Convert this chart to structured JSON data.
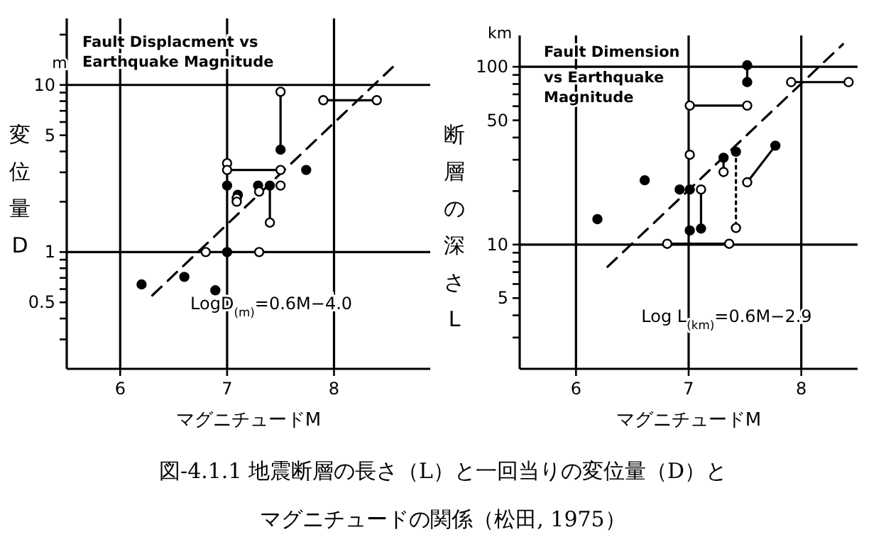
{
  "chart_data": [
    {
      "type": "scatter",
      "title": "Fault Displacment vs Earthquake Magnitude",
      "xlabel": "マグニチュードM",
      "ylabel": "変位量D",
      "annotations": [
        "m",
        "LogD$_{(m)}$=0.6M−4.0"
      ],
      "xlim": [
        5.5,
        8.9
      ],
      "ylim": [
        0.2,
        25
      ],
      "xticks": [
        6,
        7,
        8
      ],
      "yticks": [
        {
          "value": 0.3,
          "label": null
        },
        {
          "value": 0.4,
          "label": null
        },
        0.5,
        {
          "value": 0.6,
          "label": null
        },
        {
          "value": 0.7,
          "label": null
        },
        {
          "value": 0.8,
          "label": null
        },
        {
          "value": 0.9,
          "label": null
        },
        1,
        {
          "value": 2,
          "label": null
        },
        {
          "value": 3,
          "label": null
        },
        {
          "value": 4,
          "label": null
        },
        5,
        {
          "value": 6,
          "label": null
        },
        {
          "value": 7,
          "label": null
        },
        {
          "value": 8,
          "label": null
        },
        {
          "value": 9,
          "label": null
        },
        10,
        {
          "value": 20,
          "label": null
        }
      ],
      "log": "y",
      "marker": "circle",
      "grid": false,
      "ref_lines": [
        {
          "axis": "x",
          "value": 6
        },
        {
          "axis": "x",
          "value": 7
        },
        {
          "axis": "x",
          "value": 8
        },
        {
          "axis": "y",
          "value": 1
        },
        {
          "axis": "y",
          "value": 10
        }
      ],
      "series": [
        {
          "type": "line",
          "color": "#000000",
          "marker": "none",
          "line_style": "dashed",
          "x": [
            6.3,
            8.55
          ],
          "values": [
            0.55,
            12.8
          ]
        },
        {
          "type": "line",
          "color": "#000000",
          "marker": "none",
          "x": [
            7.5,
            7.5
          ],
          "values": [
            9.1,
            4.1
          ]
        },
        {
          "type": "line",
          "color": "#000000",
          "marker": "none",
          "x": [
            7.0,
            7.5
          ],
          "values": [
            3.1,
            3.1
          ]
        },
        {
          "type": "line",
          "color": "#000000",
          "marker": "none",
          "x": [
            7.4,
            7.4
          ],
          "values": [
            2.5,
            1.5
          ]
        },
        {
          "type": "line",
          "color": "#000000",
          "marker": "none",
          "x": [
            7.9,
            8.4
          ],
          "values": [
            8.1,
            8.1
          ]
        },
        {
          "color": "#000000",
          "x": [
            6.2,
            6.6,
            6.89,
            7.0,
            7.0,
            7.1,
            7.29,
            7.4,
            7.5,
            7.74
          ],
          "values": [
            0.64,
            0.71,
            0.59,
            1.0,
            2.5,
            2.2,
            2.5,
            2.5,
            4.1,
            3.1
          ]
        },
        {
          "color": "#ffffff",
          "x": [
            7.5,
            7.0,
            7.0,
            7.5,
            7.09,
            7.09,
            7.3,
            7.4,
            7.5,
            6.8,
            7.3,
            7.9,
            8.4
          ],
          "values": [
            9.1,
            3.4,
            3.1,
            3.1,
            2.1,
            2.0,
            2.3,
            1.5,
            2.5,
            1.0,
            1.0,
            8.1,
            8.1
          ]
        }
      ]
    },
    {
      "type": "scatter",
      "title": "Fault Dimension vs Earthquake Magnitude",
      "xlabel": "マグニチュードM",
      "ylabel": "断層の深さL",
      "annotations": [
        "km",
        "Log L$_{(km)}$=0.6M−2.9",
        "図-4.1.1 地震断層の長さ（L）と一回当りの変位量（D）と",
        "マグニチュードの関係（松田, 1975）"
      ],
      "xlim": [
        5.5,
        8.5
      ],
      "ylim": [
        2,
        150
      ],
      "xticks": [
        6,
        7,
        8
      ],
      "yticks": [
        {
          "value": 3,
          "label": null
        },
        {
          "value": 4,
          "label": null
        },
        5,
        {
          "value": 6,
          "label": null
        },
        {
          "value": 7,
          "label": null
        },
        {
          "value": 8,
          "label": null
        },
        {
          "value": 9,
          "label": null
        },
        10,
        {
          "value": 20,
          "label": null
        },
        {
          "value": 30,
          "label": null
        },
        {
          "value": 40,
          "label": null
        },
        50,
        {
          "value": 60,
          "label": null
        },
        {
          "value": 70,
          "label": null
        },
        {
          "value": 80,
          "label": null
        },
        {
          "value": 90,
          "label": null
        },
        100
      ],
      "log": "y",
      "marker": "circle",
      "grid": false,
      "ref_lines": [
        {
          "axis": "x",
          "value": 6
        },
        {
          "axis": "x",
          "value": 7
        },
        {
          "axis": "x",
          "value": 8
        },
        {
          "axis": "y",
          "value": 10
        },
        {
          "axis": "y",
          "value": 100
        }
      ],
      "series": [
        {
          "type": "line",
          "color": "#000000",
          "marker": "none",
          "line_style": "dashed",
          "x": [
            6.28,
            8.37
          ],
          "values": [
            7.5,
            134
          ]
        },
        {
          "type": "line",
          "color": "#000000",
          "marker": "none",
          "x": [
            7.52,
            7.52
          ],
          "values": [
            102,
            82
          ]
        },
        {
          "type": "line",
          "color": "#000000",
          "marker": "none",
          "x": [
            7.01,
            7.52
          ],
          "values": [
            60.5,
            60.5
          ]
        },
        {
          "type": "line",
          "color": "#000000",
          "marker": "none",
          "x": [
            7.11,
            7.11
          ],
          "values": [
            20.4,
            12.3
          ]
        },
        {
          "type": "line",
          "color": "#000000",
          "marker": "none",
          "x": [
            7.31,
            7.31
          ],
          "values": [
            30.8,
            25.6
          ]
        },
        {
          "type": "line",
          "color": "#000000",
          "marker": "none",
          "line_style": "dotted",
          "x": [
            7.42,
            7.42
          ],
          "values": [
            33.3,
            12.4
          ]
        },
        {
          "type": "line",
          "color": "#000000",
          "marker": "none",
          "x": [
            7.52,
            7.77
          ],
          "values": [
            22.4,
            36
          ]
        },
        {
          "type": "line",
          "color": "#000000",
          "marker": "none",
          "x": [
            7.91,
            8.42
          ],
          "values": [
            82,
            82
          ]
        },
        {
          "type": "line",
          "color": "#000000",
          "marker": "none",
          "x": [
            6.81,
            7.36
          ],
          "values": [
            10.1,
            10.1
          ]
        },
        {
          "color": "#000000",
          "x": [
            6.19,
            6.61,
            6.92,
            7.01,
            7.01,
            7.11,
            7.31,
            7.42,
            7.52,
            7.52,
            7.77
          ],
          "values": [
            13.9,
            23,
            20.4,
            20.4,
            12,
            12.3,
            30.8,
            33.3,
            102,
            82,
            36
          ]
        },
        {
          "color": "#ffffff",
          "x": [
            7.01,
            7.11,
            7.31,
            7.42,
            7.52,
            7.01,
            7.52,
            6.81,
            7.36,
            7.91,
            8.42
          ],
          "values": [
            32,
            20.4,
            25.6,
            12.4,
            22.4,
            60.5,
            60.5,
            10.1,
            10.1,
            82,
            82
          ]
        }
      ]
    }
  ]
}
